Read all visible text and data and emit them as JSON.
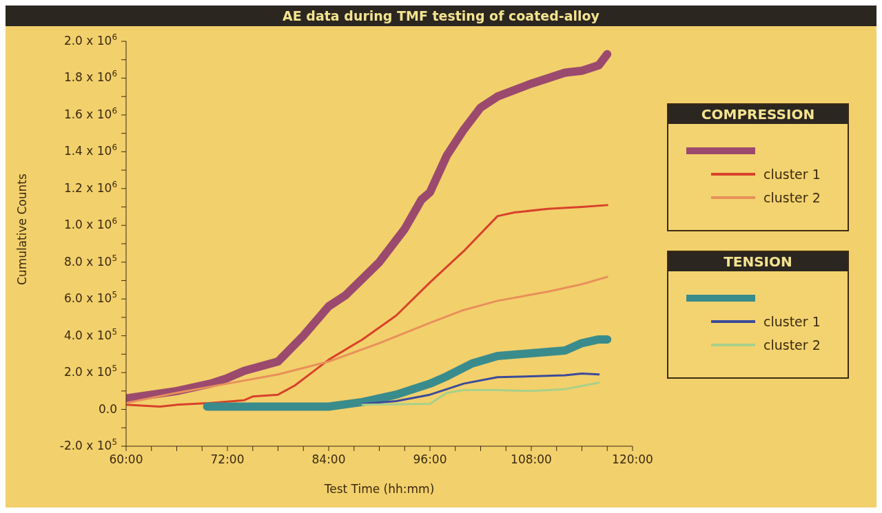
{
  "chart_data": {
    "type": "line",
    "title": "AE data during TMF testing of coated-alloy",
    "xlabel": "Test Time (hh:mm)",
    "ylabel": "Cumulative Counts",
    "xlim": [
      60,
      120
    ],
    "xticks": [
      {
        "value": 60,
        "label": "60:00"
      },
      {
        "value": 63,
        "label": null
      },
      {
        "value": 66,
        "label": null
      },
      {
        "value": 69,
        "label": null
      },
      {
        "value": 72,
        "label": "72:00"
      },
      {
        "value": 75,
        "label": null
      },
      {
        "value": 78,
        "label": null
      },
      {
        "value": 81,
        "label": null
      },
      {
        "value": 84,
        "label": "84:00"
      },
      {
        "value": 87,
        "label": null
      },
      {
        "value": 90,
        "label": null
      },
      {
        "value": 93,
        "label": null
      },
      {
        "value": 96,
        "label": "96:00"
      },
      {
        "value": 99,
        "label": null
      },
      {
        "value": 102,
        "label": null
      },
      {
        "value": 105,
        "label": null
      },
      {
        "value": 108,
        "label": "108:00"
      },
      {
        "value": 111,
        "label": null
      },
      {
        "value": 114,
        "label": null
      },
      {
        "value": 117,
        "label": null
      },
      {
        "value": 120,
        "label": "120:00"
      }
    ],
    "ylim": [
      -200000,
      2000000
    ],
    "yticks": [
      {
        "value": -200000,
        "label": "-2.0 x 10$^{5}$"
      },
      {
        "value": -100000,
        "label": null
      },
      {
        "value": 0,
        "label": "0.0"
      },
      {
        "value": 100000,
        "label": null
      },
      {
        "value": 200000,
        "label": "2.0 x 10$^{5}$"
      },
      {
        "value": 300000,
        "label": null
      },
      {
        "value": 400000,
        "label": "4.0 x 10$^{5}$"
      },
      {
        "value": 500000,
        "label": null
      },
      {
        "value": 600000,
        "label": "6.0 x 10$^{5}$"
      },
      {
        "value": 700000,
        "label": null
      },
      {
        "value": 800000,
        "label": "8.0 x 10$^{5}$"
      },
      {
        "value": 900000,
        "label": null
      },
      {
        "value": 1000000,
        "label": "1.0 x 10$^{6}$"
      },
      {
        "value": 1100000,
        "label": null
      },
      {
        "value": 1200000,
        "label": "1.2 x 10$^{6}$"
      },
      {
        "value": 1300000,
        "label": null
      },
      {
        "value": 1400000,
        "label": "1.4 x 10$^{6}$"
      },
      {
        "value": 1500000,
        "label": null
      },
      {
        "value": 1600000,
        "label": "1.6 x 10$^{6}$"
      },
      {
        "value": 1700000,
        "label": null
      },
      {
        "value": 1800000,
        "label": "1.8 x 10$^{6}$"
      },
      {
        "value": 1900000,
        "label": null
      },
      {
        "value": 2000000,
        "label": "2.0 x 10$^{6}$"
      }
    ],
    "legend": "right",
    "line_style": "solid",
    "annotations": [
      "COMPRESSION",
      "TENSION"
    ],
    "series": [
      {
        "color": "#9b4a6e",
        "x": [
          60,
          66,
          70,
          72,
          74,
          78,
          81,
          84,
          86,
          90,
          93,
          95,
          96,
          98,
          100,
          102,
          104,
          108,
          112,
          114,
          116,
          117
        ],
        "values": [
          60000,
          100000,
          140000,
          170000,
          210000,
          260000,
          400000,
          560000,
          620000,
          800000,
          980000,
          1140000,
          1180000,
          1380000,
          1520000,
          1640000,
          1700000,
          1770000,
          1830000,
          1840000,
          1870000,
          1930000
        ]
      },
      {
        "name": "cluster 1",
        "color": "#d8412a",
        "x": [
          60,
          64,
          66,
          70,
          74,
          75,
          78,
          80,
          82,
          84,
          88,
          92,
          96,
          100,
          104,
          106,
          110,
          114,
          117
        ],
        "values": [
          25000,
          15000,
          25000,
          35000,
          50000,
          70000,
          80000,
          130000,
          200000,
          270000,
          380000,
          510000,
          690000,
          860000,
          1050000,
          1070000,
          1090000,
          1100000,
          1110000
        ]
      },
      {
        "name": "cluster 2",
        "color": "#e8905a",
        "x": [
          60,
          66,
          72,
          78,
          84,
          90,
          96,
          100,
          104,
          110,
          114,
          117
        ],
        "values": [
          35000,
          90000,
          140000,
          190000,
          260000,
          360000,
          470000,
          540000,
          590000,
          640000,
          680000,
          720000
        ]
      },
      {
        "color": "#3a8c8c",
        "x": [
          69.6,
          84,
          88,
          92,
          96,
          98,
          101,
          104,
          108,
          112,
          114,
          116,
          117
        ],
        "values": [
          15000,
          15000,
          40000,
          80000,
          140000,
          180000,
          250000,
          290000,
          305000,
          320000,
          360000,
          380000,
          380000
        ]
      },
      {
        "name": "cluster 1",
        "color": "#3b4a9a",
        "x": [
          88,
          92,
          96,
          100,
          104,
          108,
          112,
          114,
          116
        ],
        "values": [
          30000,
          45000,
          80000,
          140000,
          175000,
          180000,
          185000,
          195000,
          190000
        ]
      },
      {
        "name": "cluster 2",
        "color": "#a8d08a",
        "x": [
          88,
          96,
          98,
          100,
          104,
          108,
          112,
          116
        ],
        "values": [
          25000,
          30000,
          90000,
          105000,
          105000,
          100000,
          110000,
          145000
        ]
      }
    ]
  }
}
